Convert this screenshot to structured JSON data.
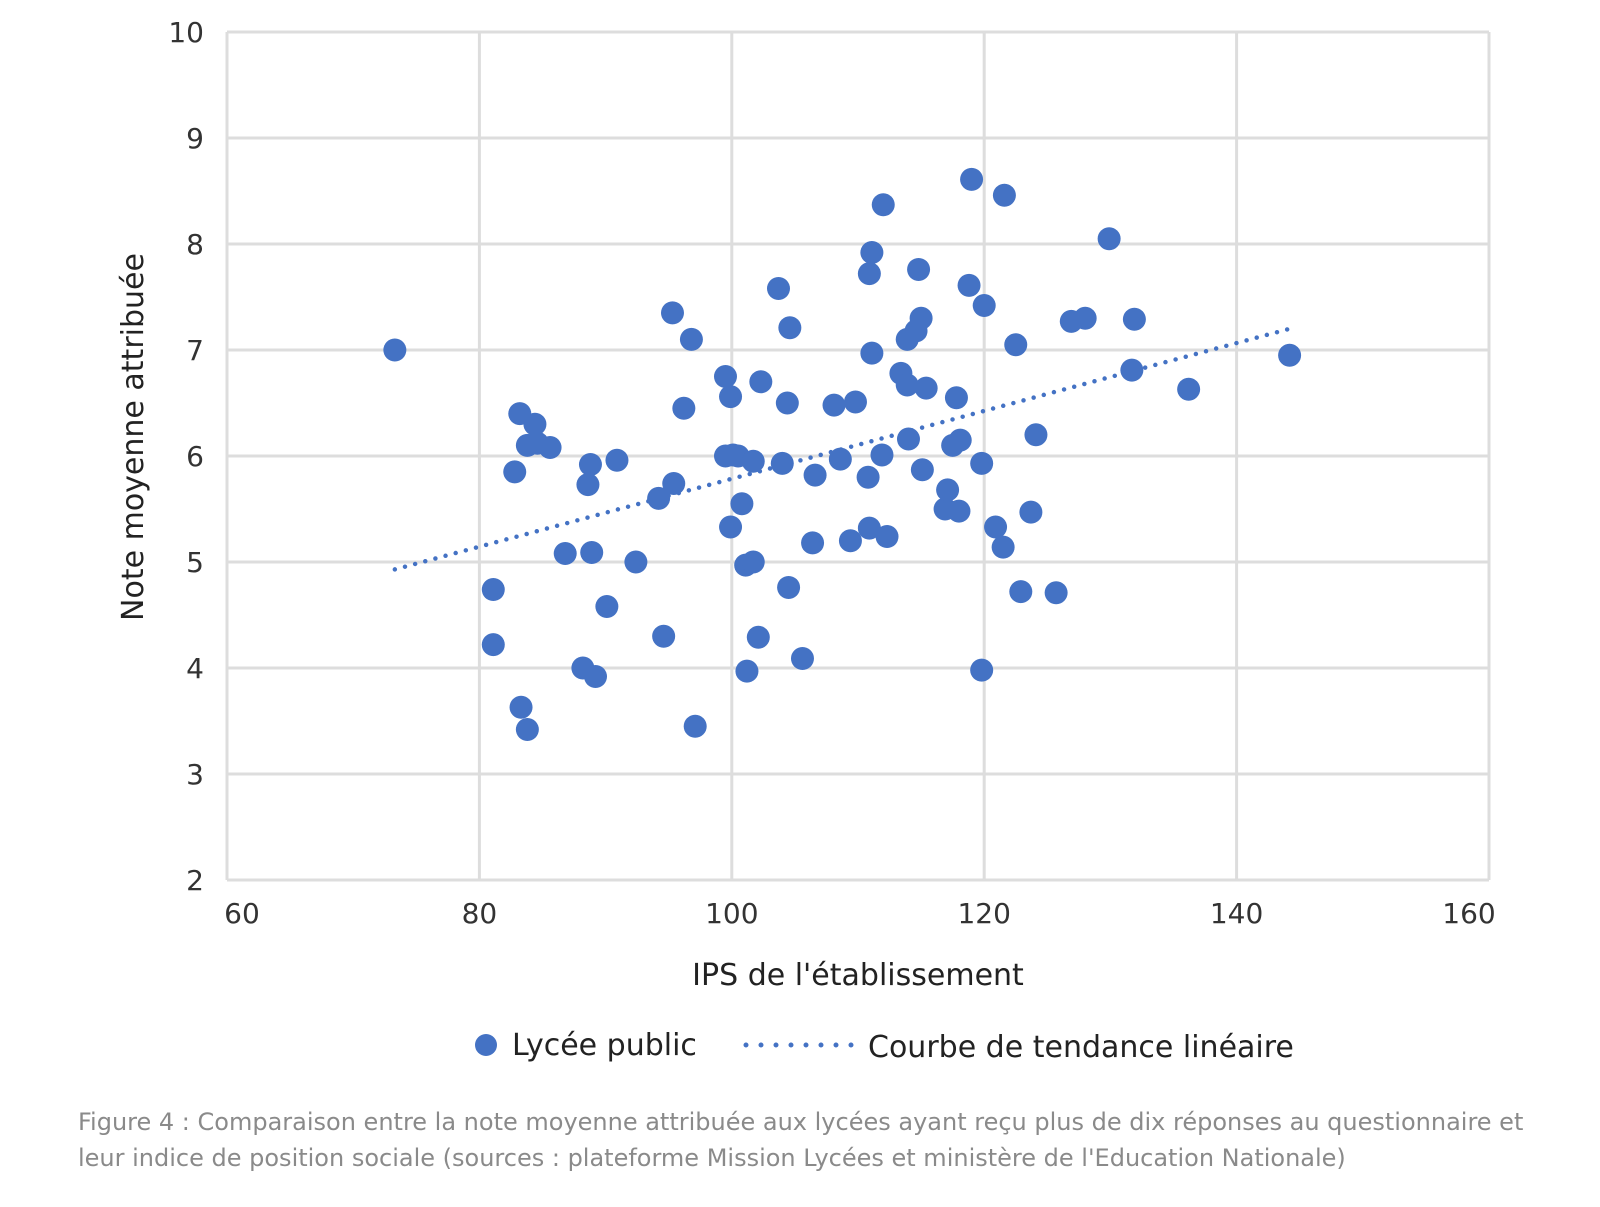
{
  "chart_data": {
    "type": "scatter",
    "xlabel": "IPS de l'établissement",
    "ylabel": "Note moyenne attribuée",
    "xlim": [
      60,
      160
    ],
    "ylim": [
      2,
      10
    ],
    "xticks": [
      60,
      80,
      100,
      120,
      140,
      160
    ],
    "yticks": [
      2,
      3,
      4,
      5,
      6,
      7,
      8,
      9,
      10
    ],
    "grid": true,
    "legend_position": "bottom",
    "point_color": "#4472C4",
    "series": [
      {
        "name": "Lycée public",
        "points": [
          [
            73.3,
            7.0
          ],
          [
            81.1,
            4.74
          ],
          [
            81.1,
            4.22
          ],
          [
            82.8,
            5.85
          ],
          [
            83.2,
            6.4
          ],
          [
            84.4,
            6.3
          ],
          [
            83.8,
            6.1
          ],
          [
            84.6,
            6.12
          ],
          [
            85.6,
            6.08
          ],
          [
            83.3,
            3.63
          ],
          [
            83.8,
            3.42
          ],
          [
            86.8,
            5.08
          ],
          [
            88.2,
            4.0
          ],
          [
            89.2,
            3.92
          ],
          [
            88.8,
            5.92
          ],
          [
            88.6,
            5.73
          ],
          [
            88.9,
            5.09
          ],
          [
            90.1,
            4.58
          ],
          [
            90.9,
            5.96
          ],
          [
            92.4,
            5.0
          ],
          [
            94.2,
            5.6
          ],
          [
            95.4,
            5.74
          ],
          [
            94.6,
            4.3
          ],
          [
            95.3,
            7.35
          ],
          [
            96.2,
            6.45
          ],
          [
            96.8,
            7.1
          ],
          [
            97.1,
            3.45
          ],
          [
            99.5,
            6.75
          ],
          [
            99.9,
            6.56
          ],
          [
            99.5,
            6.0
          ],
          [
            100.1,
            6.01
          ],
          [
            100.5,
            6.0
          ],
          [
            99.9,
            5.33
          ],
          [
            100.8,
            5.55
          ],
          [
            101.7,
            5.95
          ],
          [
            101.1,
            4.97
          ],
          [
            101.7,
            5.0
          ],
          [
            101.2,
            3.97
          ],
          [
            102.1,
            4.29
          ],
          [
            102.3,
            6.7
          ],
          [
            103.7,
            7.58
          ],
          [
            104.6,
            7.21
          ],
          [
            104.4,
            6.5
          ],
          [
            104.0,
            5.93
          ],
          [
            104.5,
            4.76
          ],
          [
            105.6,
            4.09
          ],
          [
            106.4,
            5.18
          ],
          [
            106.6,
            5.82
          ],
          [
            108.1,
            6.48
          ],
          [
            108.6,
            5.97
          ],
          [
            109.4,
            5.2
          ],
          [
            109.8,
            6.51
          ],
          [
            110.8,
            5.8
          ],
          [
            110.9,
            5.32
          ],
          [
            111.1,
            7.92
          ],
          [
            110.9,
            7.72
          ],
          [
            111.1,
            6.97
          ],
          [
            111.9,
            6.01
          ],
          [
            112.3,
            5.24
          ],
          [
            112.0,
            8.37
          ],
          [
            113.4,
            6.78
          ],
          [
            113.9,
            7.1
          ],
          [
            114.6,
            7.18
          ],
          [
            115.0,
            7.3
          ],
          [
            113.9,
            6.67
          ],
          [
            114.0,
            6.16
          ],
          [
            115.1,
            5.87
          ],
          [
            115.4,
            6.64
          ],
          [
            114.8,
            7.76
          ],
          [
            116.9,
            5.5
          ],
          [
            117.1,
            5.68
          ],
          [
            117.5,
            6.1
          ],
          [
            118.1,
            6.15
          ],
          [
            117.8,
            6.55
          ],
          [
            118.0,
            5.48
          ],
          [
            118.8,
            7.61
          ],
          [
            119.0,
            8.61
          ],
          [
            120.0,
            7.42
          ],
          [
            119.8,
            5.93
          ],
          [
            119.8,
            3.98
          ],
          [
            120.9,
            5.33
          ],
          [
            121.5,
            5.14
          ],
          [
            121.6,
            8.46
          ],
          [
            122.5,
            7.05
          ],
          [
            122.9,
            4.72
          ],
          [
            124.1,
            6.2
          ],
          [
            123.7,
            5.47
          ],
          [
            125.7,
            4.71
          ],
          [
            126.9,
            7.27
          ],
          [
            128.0,
            7.3
          ],
          [
            129.9,
            8.05
          ],
          [
            131.9,
            7.29
          ],
          [
            131.7,
            6.81
          ],
          [
            136.2,
            6.63
          ],
          [
            144.2,
            6.95
          ]
        ]
      }
    ],
    "trendline": {
      "name": "Courbe de tendance linéaire",
      "x": [
        73.3,
        144.2
      ],
      "y": [
        4.93,
        7.2
      ]
    }
  },
  "caption": "Figure 4 : Comparaison entre la note moyenne attribuée aux lycées ayant reçu plus de dix réponses au questionnaire et leur indice de position sociale (sources : plateforme Mission Lycées et ministère de l'Education Nationale)"
}
